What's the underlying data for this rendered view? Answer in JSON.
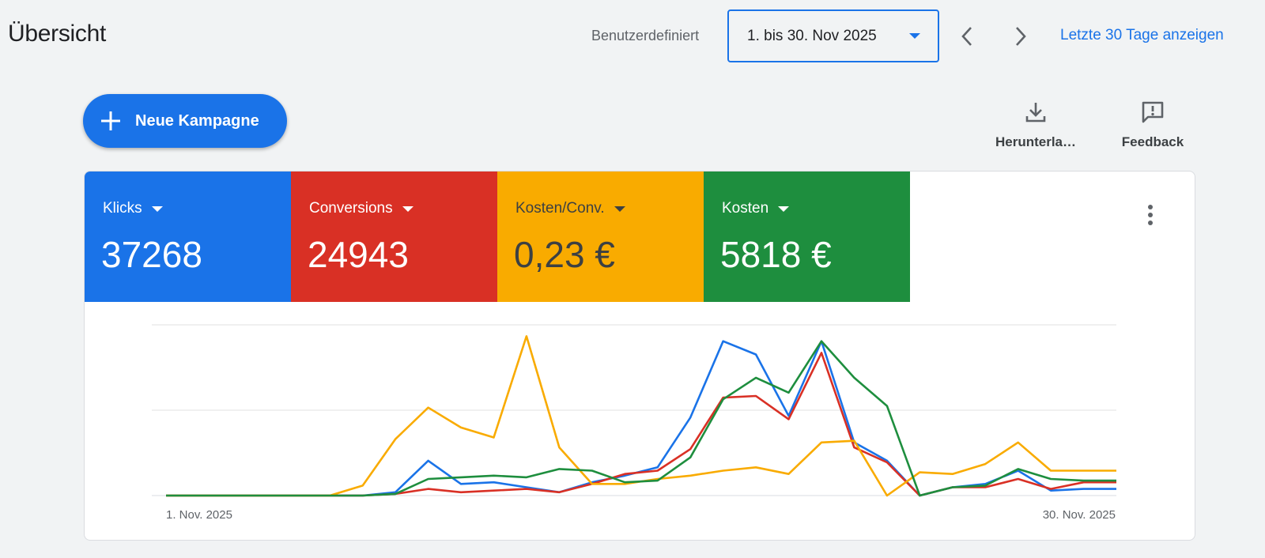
{
  "header": {
    "title": "Übersicht",
    "range_label": "Benutzerdefiniert",
    "date_range": "1. bis 30. Nov 2025",
    "last30_link": "Letzte 30 Tage anzeigen"
  },
  "toolbar": {
    "new_campaign_label": "Neue Kampagne",
    "download_label": "Herunterla…",
    "feedback_label": "Feedback"
  },
  "metrics": [
    {
      "label": "Klicks",
      "value": "37268",
      "color": "#1a73e8",
      "text_color": "#ffffff"
    },
    {
      "label": "Conversions",
      "value": "24943",
      "color": "#d93025",
      "text_color": "#ffffff"
    },
    {
      "label": "Kosten/Conv.",
      "value": "0,23 €",
      "color": "#f9ab00",
      "text_color": "#3c4043"
    },
    {
      "label": "Kosten",
      "value": "5818 €",
      "color": "#1e8e3e",
      "text_color": "#ffffff"
    }
  ],
  "chart_data": {
    "type": "line",
    "x_start_label": "1. Nov. 2025",
    "x_end_label": "30. Nov. 2025",
    "grid": true,
    "gridlines": 3,
    "x": [
      1,
      2,
      3,
      4,
      5,
      6,
      7,
      8,
      9,
      10,
      11,
      12,
      13,
      14,
      15,
      16,
      17,
      18,
      19,
      20,
      21,
      22,
      23,
      24,
      25,
      26,
      27,
      28,
      29,
      30
    ],
    "series": [
      {
        "color": "#1a73e8",
        "values": [
          0,
          0,
          0,
          0,
          0,
          0,
          0,
          2,
          21,
          7,
          8,
          5,
          2,
          8,
          12,
          17,
          47,
          93,
          85,
          48,
          93,
          32,
          21,
          0,
          5,
          7,
          15,
          3,
          4,
          4
        ]
      },
      {
        "color": "#d93025",
        "values": [
          0,
          0,
          0,
          0,
          0,
          0,
          0,
          1,
          4,
          2,
          3,
          4,
          2,
          7,
          13,
          15,
          28,
          59,
          60,
          46,
          86,
          29,
          20,
          0,
          5,
          5,
          10,
          4,
          8,
          8
        ]
      },
      {
        "color": "#f9ab00",
        "values": [
          0,
          0,
          0,
          0,
          0,
          0,
          6,
          34,
          53,
          41,
          35,
          96,
          29,
          7,
          7,
          10,
          12,
          15,
          17,
          13,
          32,
          33,
          0,
          14,
          13,
          19,
          32,
          15,
          15,
          15
        ]
      },
      {
        "color": "#1e8e3e",
        "values": [
          0,
          0,
          0,
          0,
          0,
          0,
          0,
          1,
          10,
          11,
          12,
          11,
          16,
          15,
          8,
          9,
          23,
          58,
          71,
          62,
          93,
          71,
          54,
          0,
          5,
          6,
          16,
          10,
          9,
          9
        ]
      }
    ]
  }
}
